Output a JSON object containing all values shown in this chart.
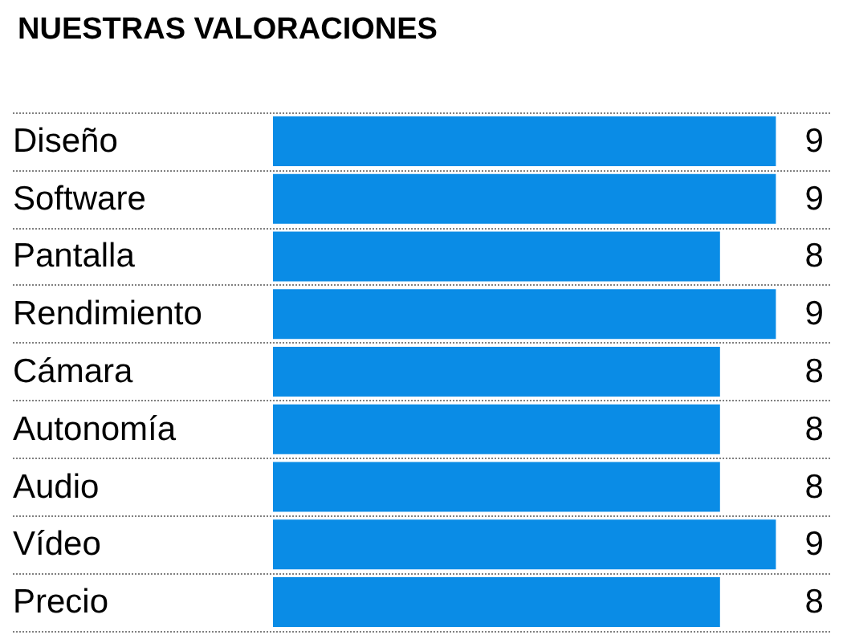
{
  "chart_data": {
    "type": "bar",
    "orientation": "horizontal",
    "title": "NUESTRAS VALORACIONES",
    "categories": [
      "Diseño",
      "Software",
      "Pantalla",
      "Rendimiento",
      "Cámara",
      "Autonomía",
      "Audio",
      "Vídeo",
      "Precio"
    ],
    "values": [
      9,
      9,
      8,
      9,
      8,
      8,
      8,
      9,
      8
    ],
    "color": "#0a8ce6",
    "data_labels": true,
    "grid": "y"
  }
}
